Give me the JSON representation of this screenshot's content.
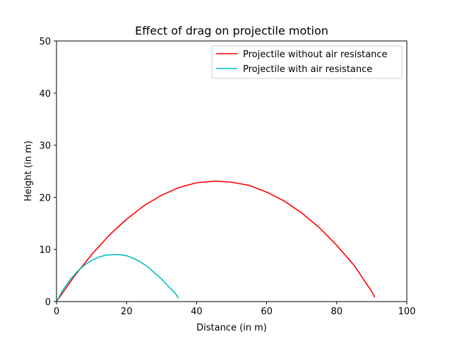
{
  "chart_data": {
    "type": "line",
    "title": "Effect of drag on projectile motion",
    "xlabel": "Distance (in m)",
    "ylabel": "Height (in m)",
    "xlim": [
      0,
      100
    ],
    "ylim": [
      0,
      50
    ],
    "xticks": [
      0,
      20,
      40,
      60,
      80,
      100
    ],
    "yticks": [
      0,
      10,
      20,
      30,
      40,
      50
    ],
    "grid": false,
    "legend_position": "top-right",
    "series": [
      {
        "name": "Projectile without air resistance",
        "color": "#ff0000",
        "x": [
          0,
          5,
          10,
          15,
          20,
          25,
          30,
          35,
          40,
          45,
          46,
          50,
          55,
          60,
          65,
          70,
          75,
          80,
          85,
          90,
          90.8
        ],
        "y": [
          0,
          4.8,
          9.0,
          12.7,
          15.8,
          18.4,
          20.4,
          21.9,
          22.8,
          23.1,
          23.1,
          22.9,
          22.3,
          21.0,
          19.3,
          17.0,
          14.2,
          10.8,
          6.9,
          1.9,
          0.9
        ]
      },
      {
        "name": "Projectile with air resistance",
        "color": "#00bfbf",
        "x": [
          0,
          2,
          4,
          6,
          8,
          10,
          12,
          14,
          16,
          18,
          20,
          22,
          24,
          26,
          28,
          30,
          32,
          34,
          34.8
        ],
        "y": [
          0,
          2.4,
          4.3,
          5.8,
          7.0,
          7.9,
          8.5,
          8.9,
          9.0,
          9.0,
          8.8,
          8.3,
          7.6,
          6.7,
          5.5,
          4.3,
          2.9,
          1.5,
          0.7
        ]
      }
    ]
  }
}
